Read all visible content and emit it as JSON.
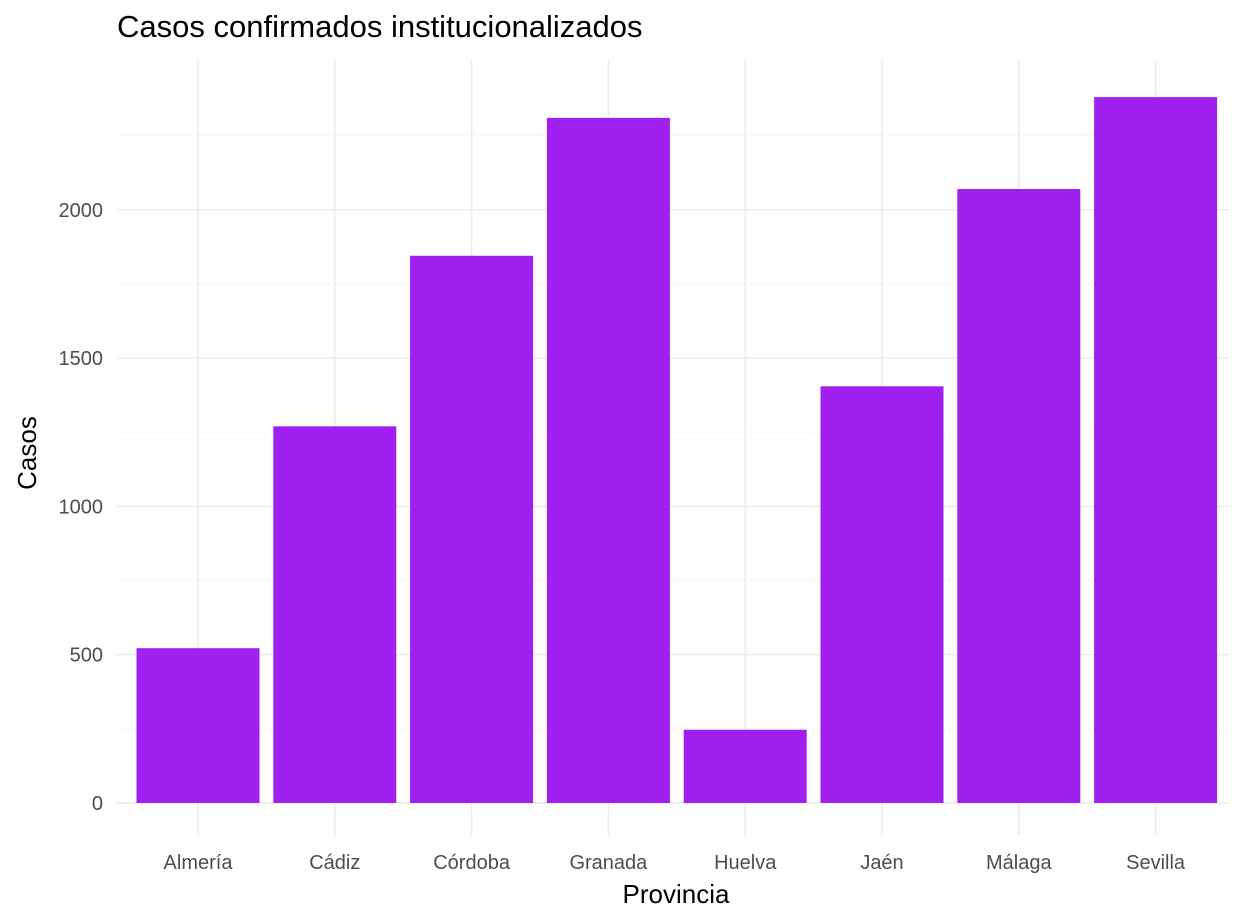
{
  "chart_data": {
    "type": "bar",
    "title": "Casos confirmados institucionalizados",
    "xlabel": "Provincia",
    "ylabel": "Casos",
    "categories": [
      "Almería",
      "Cádiz",
      "Córdoba",
      "Granada",
      "Huelva",
      "Jaén",
      "Málaga",
      "Sevilla"
    ],
    "values": [
      522,
      1270,
      1845,
      2310,
      247,
      1405,
      2070,
      2380
    ],
    "yticks": [
      0,
      500,
      1000,
      1500,
      2000
    ],
    "ylim": [
      0,
      2500
    ],
    "grid": true,
    "legend": "none",
    "bar_color": "#a020f0"
  }
}
